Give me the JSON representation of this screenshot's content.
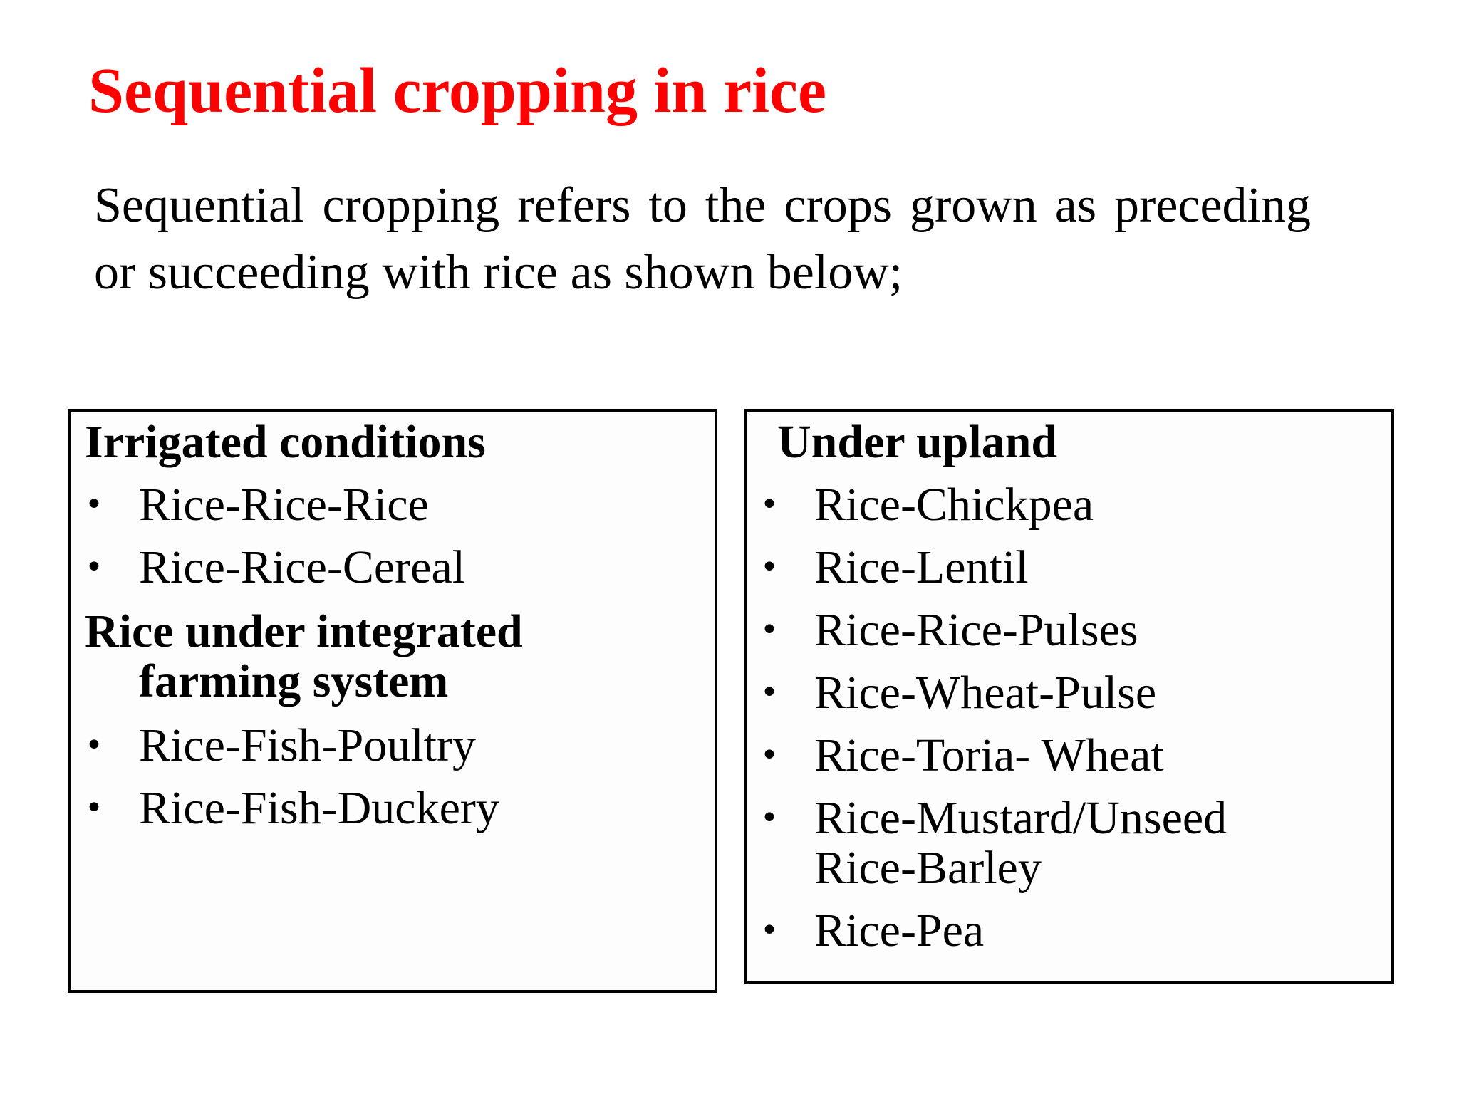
{
  "title": "Sequential cropping in rice",
  "intro": "Sequential cropping refers to the crops grown as preceding or succeeding with rice as shown below;",
  "left_box": {
    "heading_1": "Irrigated conditions",
    "items_1": [
      "Rice-Rice-Rice",
      "Rice-Rice-Cereal"
    ],
    "heading_2_line1": "Rice under integrated",
    "heading_2_line2": "farming system",
    "items_2": [
      "Rice-Fish-Poultry",
      "Rice-Fish-Duckery"
    ]
  },
  "right_box": {
    "heading": "Under upland",
    "items": [
      "Rice-Chickpea",
      "Rice-Lentil",
      "Rice-Rice-Pulses",
      "Rice-Wheat-Pulse",
      "Rice-Toria- Wheat",
      "Rice-Mustard/Unseed\nRice-Barley",
      "Rice-Pea"
    ]
  },
  "bullet_symbol": "•",
  "colors": {
    "title": "#ff0000",
    "text": "#000000",
    "border": "#000000"
  }
}
